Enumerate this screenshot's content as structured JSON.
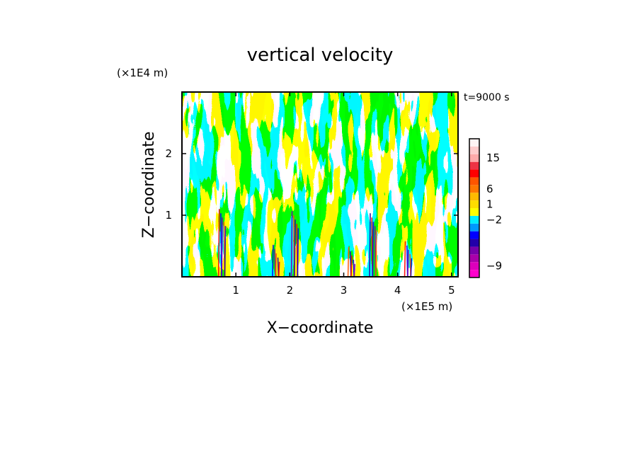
{
  "chart_data": {
    "type": "heatmap",
    "title": "vertical velocity",
    "xlabel": "X−coordinate",
    "ylabel": "Z−coordinate",
    "x_unit": "(×1E5 m)",
    "y_unit": "(×1E4 m)",
    "time_label": "t=9000 s",
    "xlim": [
      0,
      5.12
    ],
    "ylim": [
      0,
      3.0
    ],
    "x_ticks": [
      1,
      2,
      3,
      4,
      5
    ],
    "x_tick_labels": [
      "1",
      "2",
      "3",
      "4",
      "5"
    ],
    "y_ticks": [
      1,
      2
    ],
    "y_tick_labels": [
      "1",
      "2"
    ],
    "dominant_colors": {
      "positive": "#ffff00",
      "negative": "#00eeff"
    },
    "updraft_cores_x": [
      0.75,
      1.75,
      2.1,
      3.15,
      3.55,
      4.2
    ],
    "colorbar": {
      "colors": [
        "#ff00cc",
        "#dd00bb",
        "#aa00aa",
        "#7700aa",
        "#2200aa",
        "#0000ff",
        "#0099ff",
        "#00eeff",
        "#ffff00",
        "#ffdd00",
        "#ffbb00",
        "#ff7700",
        "#ff5500",
        "#ff0000",
        "#ee3344",
        "#ffaaaa",
        "#ffcccc",
        "#fff4f4"
      ],
      "tick_labels": [
        "−9",
        "−2",
        "1",
        "6",
        "15"
      ],
      "tick_bins": [
        1,
        7,
        9,
        11,
        15
      ]
    }
  }
}
